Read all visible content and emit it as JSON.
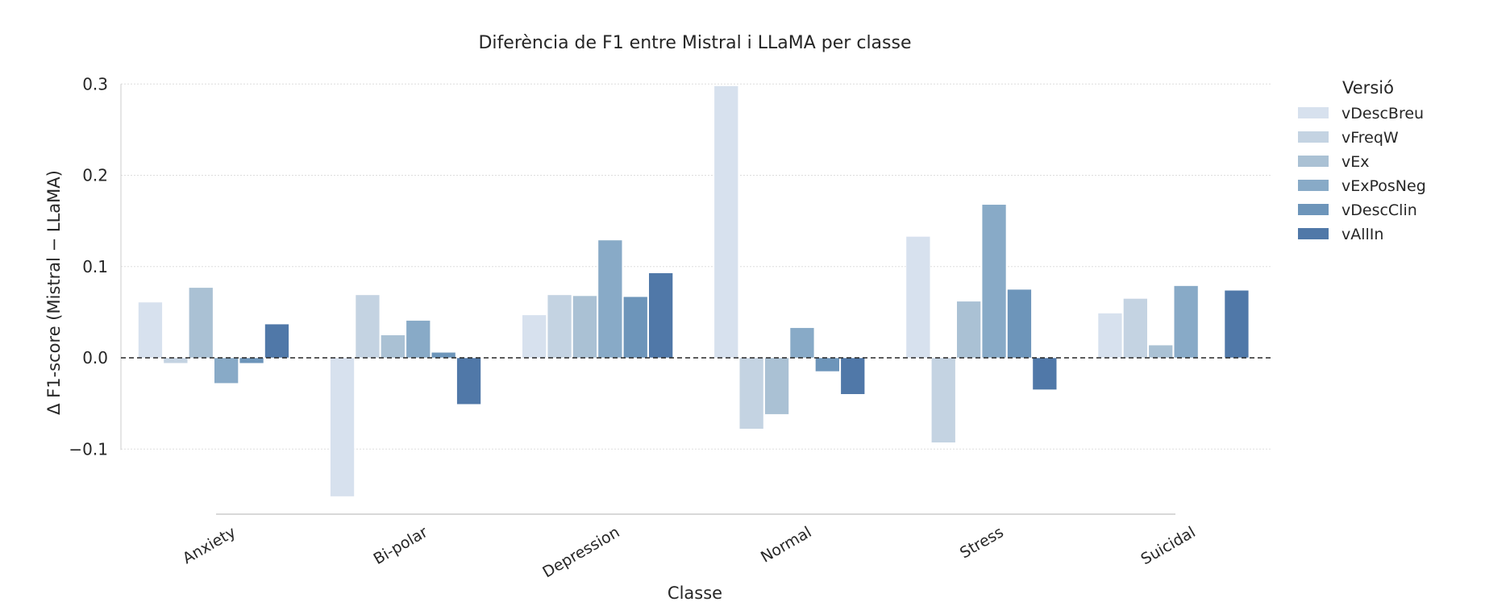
{
  "chart_data": {
    "type": "bar",
    "title": "Diferència de F1 entre Mistral i LLaMA per classe",
    "xlabel": "Classe",
    "ylabel": "Δ F1-score (Mistral − LLaMA)",
    "ylim": [
      -0.17,
      0.3
    ],
    "yticks": [
      -0.1,
      0.0,
      0.1,
      0.2,
      0.3
    ],
    "ytick_labels": [
      "−0.1",
      "0.0",
      "0.1",
      "0.2",
      "0.3"
    ],
    "grid": true,
    "zero_line": "dashed",
    "categories": [
      "Anxiety",
      "Bi-polar",
      "Depression",
      "Normal",
      "Stress",
      "Suicidal"
    ],
    "legend": {
      "title": "Versió",
      "position": "right"
    },
    "series": [
      {
        "name": "vDescBreu",
        "color": "#d7e1ee",
        "values": [
          0.061,
          -0.152,
          0.047,
          0.298,
          0.133,
          0.049
        ]
      },
      {
        "name": "vFreqW",
        "color": "#c4d3e2",
        "values": [
          -0.006,
          0.069,
          0.069,
          -0.078,
          -0.093,
          0.065
        ]
      },
      {
        "name": "vEx",
        "color": "#aac1d4",
        "values": [
          0.077,
          0.025,
          0.068,
          -0.062,
          0.062,
          0.014
        ]
      },
      {
        "name": "vExPosNeg",
        "color": "#88aac7",
        "values": [
          -0.028,
          0.041,
          0.129,
          0.033,
          0.168,
          0.079
        ]
      },
      {
        "name": "vDescClin",
        "color": "#6d95ba",
        "values": [
          -0.006,
          0.006,
          0.067,
          -0.015,
          0.075,
          0.0
        ]
      },
      {
        "name": "vAllIn",
        "color": "#5078a8",
        "values": [
          0.037,
          -0.051,
          0.093,
          -0.04,
          -0.035,
          0.074
        ]
      }
    ]
  }
}
